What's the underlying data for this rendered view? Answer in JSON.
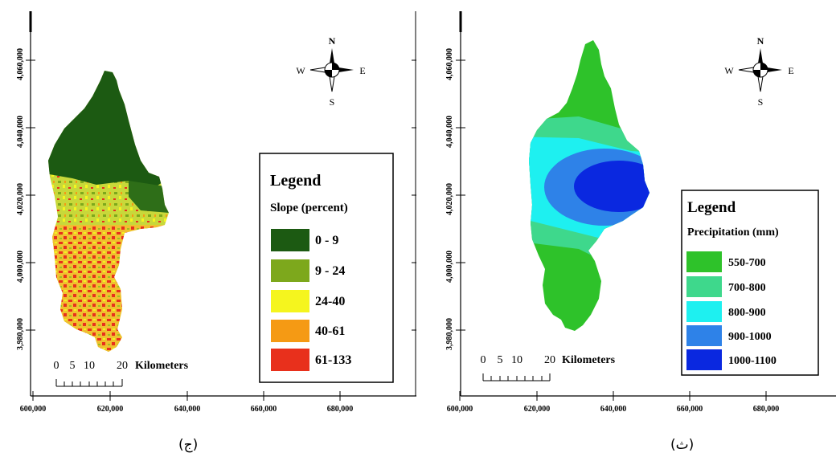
{
  "maps": [
    {
      "caption": "(ج)",
      "y_ticks": [
        "4,060,000",
        "4,040,000",
        "4,020,000",
        "4,000,000",
        "3,980,000"
      ],
      "x_ticks": [
        "600,000",
        "620,000",
        "640,000",
        "660,000",
        "680,000"
      ],
      "north_arrow": {
        "n": "N",
        "s": "S",
        "e": "E",
        "w": "W"
      },
      "scale_bar": {
        "numbers": [
          "0",
          "5",
          "10",
          "20"
        ],
        "unit": "Kilometers"
      },
      "legend": {
        "title": "Legend",
        "subtitle": "Slope (percent)",
        "items": [
          {
            "label": "0 - 9",
            "color": "#1c5a12"
          },
          {
            "label": "9 - 24",
            "color": "#7da81c"
          },
          {
            "label": "24-40",
            "color": "#f5f51e"
          },
          {
            "label": "40-61",
            "color": "#f59a14"
          },
          {
            "label": "61-133",
            "color": "#e8301c"
          }
        ]
      }
    },
    {
      "caption": "(ث)",
      "y_ticks": [
        "4,060,000",
        "4,040,000",
        "4,020,000",
        "4,000,000",
        "3,980,000"
      ],
      "x_ticks": [
        "600,000",
        "620,000",
        "640,000",
        "660,000",
        "680,000"
      ],
      "north_arrow": {
        "n": "N",
        "s": "S",
        "e": "E",
        "w": "W"
      },
      "scale_bar": {
        "numbers": [
          "0",
          "5",
          "10",
          "20"
        ],
        "unit": "Kilometers"
      },
      "legend": {
        "title": "Legend",
        "subtitle": "Precipitation (mm)",
        "items": [
          {
            "label": "550-700",
            "color": "#2ec22a"
          },
          {
            "label": "700-800",
            "color": "#3ed88c"
          },
          {
            "label": "800-900",
            "color": "#1ef0f0"
          },
          {
            "label": "900-1000",
            "color": "#2e82e8"
          },
          {
            "label": "1000-1100",
            "color": "#0a28e0"
          }
        ]
      }
    }
  ]
}
